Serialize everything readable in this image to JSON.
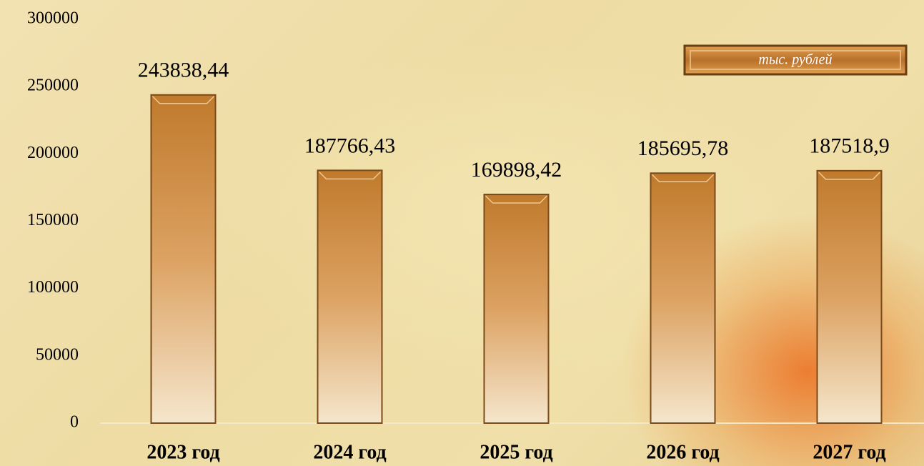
{
  "chart_data": {
    "type": "bar",
    "annotation": "тыс. рублей",
    "categories": [
      "2023 год",
      "2024 год",
      "2025 год",
      "2026 год",
      "2027 год"
    ],
    "values": [
      243838.44,
      187766.43,
      169898.42,
      185695.78,
      187518.9
    ],
    "value_labels": [
      "243838,44",
      "187766,43",
      "169898,42",
      "185695,78",
      "187518,9"
    ],
    "color": "#c98a3c",
    "ylim": [
      0,
      300000
    ],
    "yticks": [
      0,
      50000,
      100000,
      150000,
      200000,
      250000,
      300000
    ],
    "grid": false
  }
}
